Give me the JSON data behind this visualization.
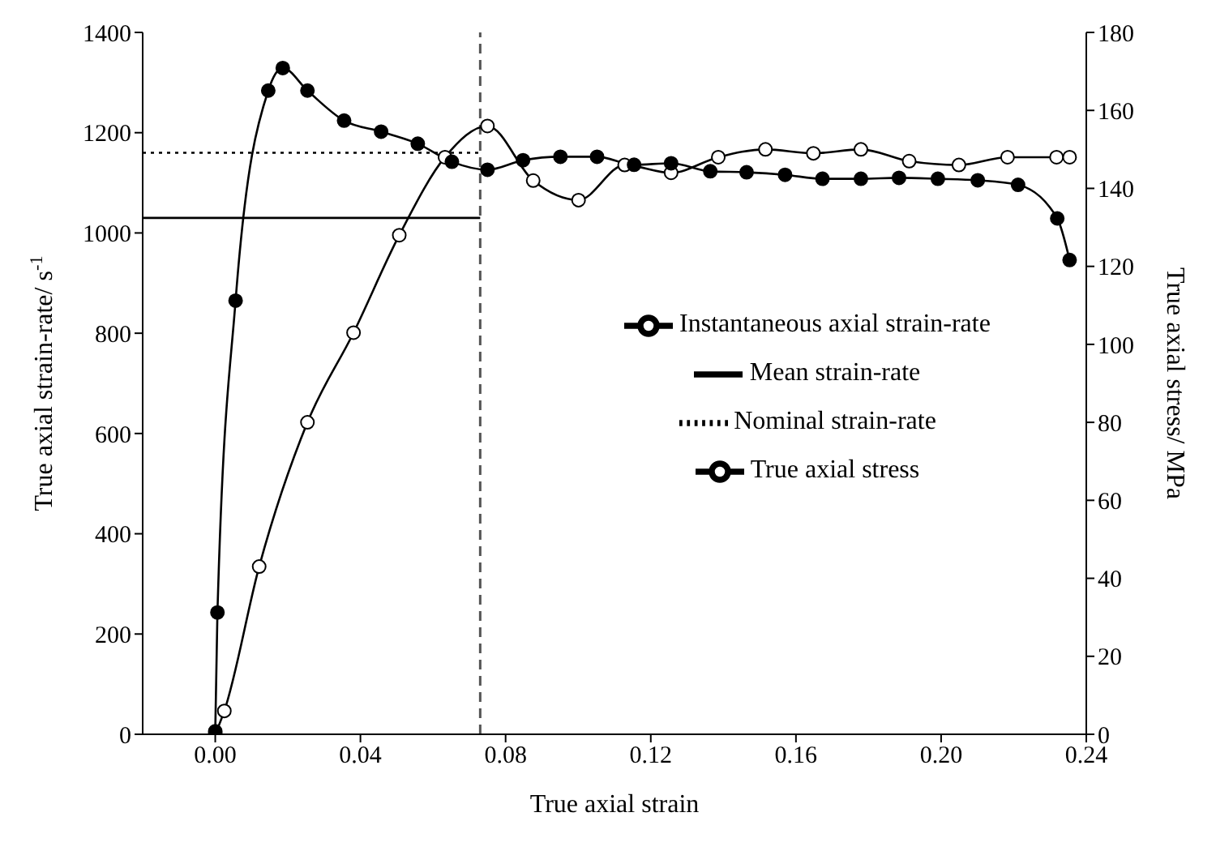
{
  "chart_data": {
    "type": "line",
    "xlabel": "True axial strain",
    "ylabel": "True axial strain-rate/ s$^{-1}$",
    "y2label": "True axial stress/ MPa",
    "xlim": [
      -0.02,
      0.24
    ],
    "xticks": [
      {
        "value": 0,
        "label": "0.00"
      },
      {
        "value": 0.04,
        "label": "0.04"
      },
      {
        "value": 0.08,
        "label": "0.08"
      },
      {
        "value": 0.12,
        "label": "0.12"
      },
      {
        "value": 0.16,
        "label": "0.16"
      },
      {
        "value": 0.2,
        "label": "0.20"
      },
      {
        "value": 0.24,
        "label": "0.24"
      }
    ],
    "ylim": [
      0,
      1400
    ],
    "yticks": [
      0,
      200,
      400,
      600,
      800,
      1000,
      1200,
      1400
    ],
    "y2lim": [
      0,
      180
    ],
    "y2ticks": [
      0,
      20,
      40,
      60,
      80,
      100,
      120,
      140,
      160,
      180
    ],
    "grid": false,
    "legend": "right",
    "marker": "circle",
    "ref_lines": [
      {
        "axis": "x",
        "value": 0.073,
        "line_style": "dashed",
        "color": "#555555"
      }
    ],
    "series": [
      {
        "name": "Instantaneous axial strain-rate",
        "color": "#000000",
        "line_style": "solid",
        "x": [
          0,
          0.0006,
          0.0056,
          0.0146,
          0.0186,
          0.0254,
          0.0355,
          0.0457,
          0.0558,
          0.0652,
          0.075,
          0.0848,
          0.0951,
          0.1052,
          0.1154,
          0.1256,
          0.1364,
          0.1464,
          0.157,
          0.1673,
          0.1779,
          0.1884,
          0.1991,
          0.2101,
          0.2212,
          0.232,
          0.2354
        ],
        "values": [
          6,
          243,
          865,
          1284,
          1329,
          1284,
          1224,
          1202,
          1178,
          1142,
          1126,
          1145,
          1152,
          1152,
          1136,
          1139,
          1123,
          1121,
          1116,
          1108,
          1108,
          1110,
          1108,
          1105,
          1096,
          1029,
          946
        ]
      },
      {
        "name": "Mean strain-rate",
        "color": "#000000",
        "type": "line",
        "marker": "none",
        "line_style": "solid",
        "x": [
          -0.02,
          0.073
        ],
        "values": [
          1030,
          1030
        ]
      },
      {
        "name": "Nominal strain-rate",
        "color": "#000000",
        "type": "line",
        "marker": "none",
        "line_style": "dotted",
        "x": [
          -0.02,
          0.073
        ],
        "values": [
          1160,
          1160
        ]
      },
      {
        "name": "True axial stress",
        "color": "#000000",
        "line_style": "solid",
        "axis": "y2",
        "x": [
          0,
          0.0025,
          0.0121,
          0.0254,
          0.0381,
          0.0507,
          0.0633,
          0.075,
          0.0876,
          0.1001,
          0.1128,
          0.1256,
          0.1386,
          0.1516,
          0.1648,
          0.1779,
          0.1912,
          0.2049,
          0.2183,
          0.2318,
          0.2354
        ],
        "values": [
          0,
          6,
          43,
          80,
          103,
          128,
          148,
          156,
          142,
          137,
          146,
          144,
          148,
          150,
          149,
          150,
          147,
          146,
          148,
          148,
          148
        ]
      }
    ]
  }
}
